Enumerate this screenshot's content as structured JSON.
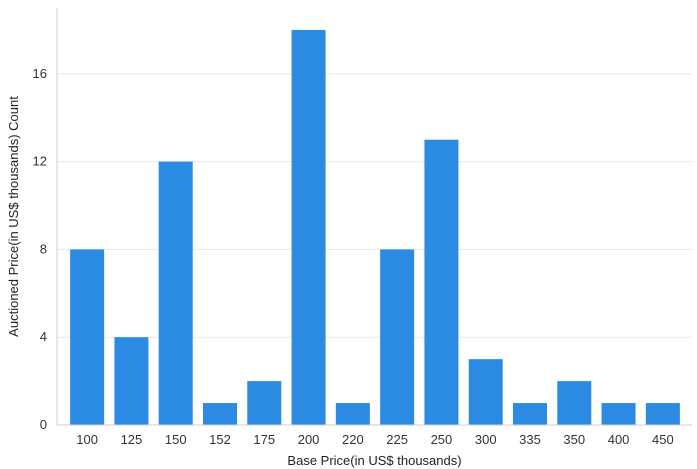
{
  "chart_data": {
    "type": "bar",
    "title": "",
    "xlabel": "Base Price(in US$ thousands)",
    "ylabel": "Auctioned Price(in US$ thousands) Count",
    "categories": [
      "100",
      "125",
      "150",
      "152",
      "175",
      "200",
      "220",
      "225",
      "250",
      "300",
      "335",
      "350",
      "400",
      "450"
    ],
    "values": [
      8,
      4,
      12,
      1,
      2,
      18,
      1,
      8,
      13,
      3,
      1,
      2,
      1,
      1
    ],
    "ylim": [
      0,
      19
    ],
    "yticks": [
      "0",
      "4",
      "8",
      "12",
      "16"
    ],
    "grid": true,
    "legend": "none",
    "colors": {
      "bar": "#2b8be3",
      "grid": "#e8e8e8",
      "axis": "#cfcfcf"
    }
  }
}
